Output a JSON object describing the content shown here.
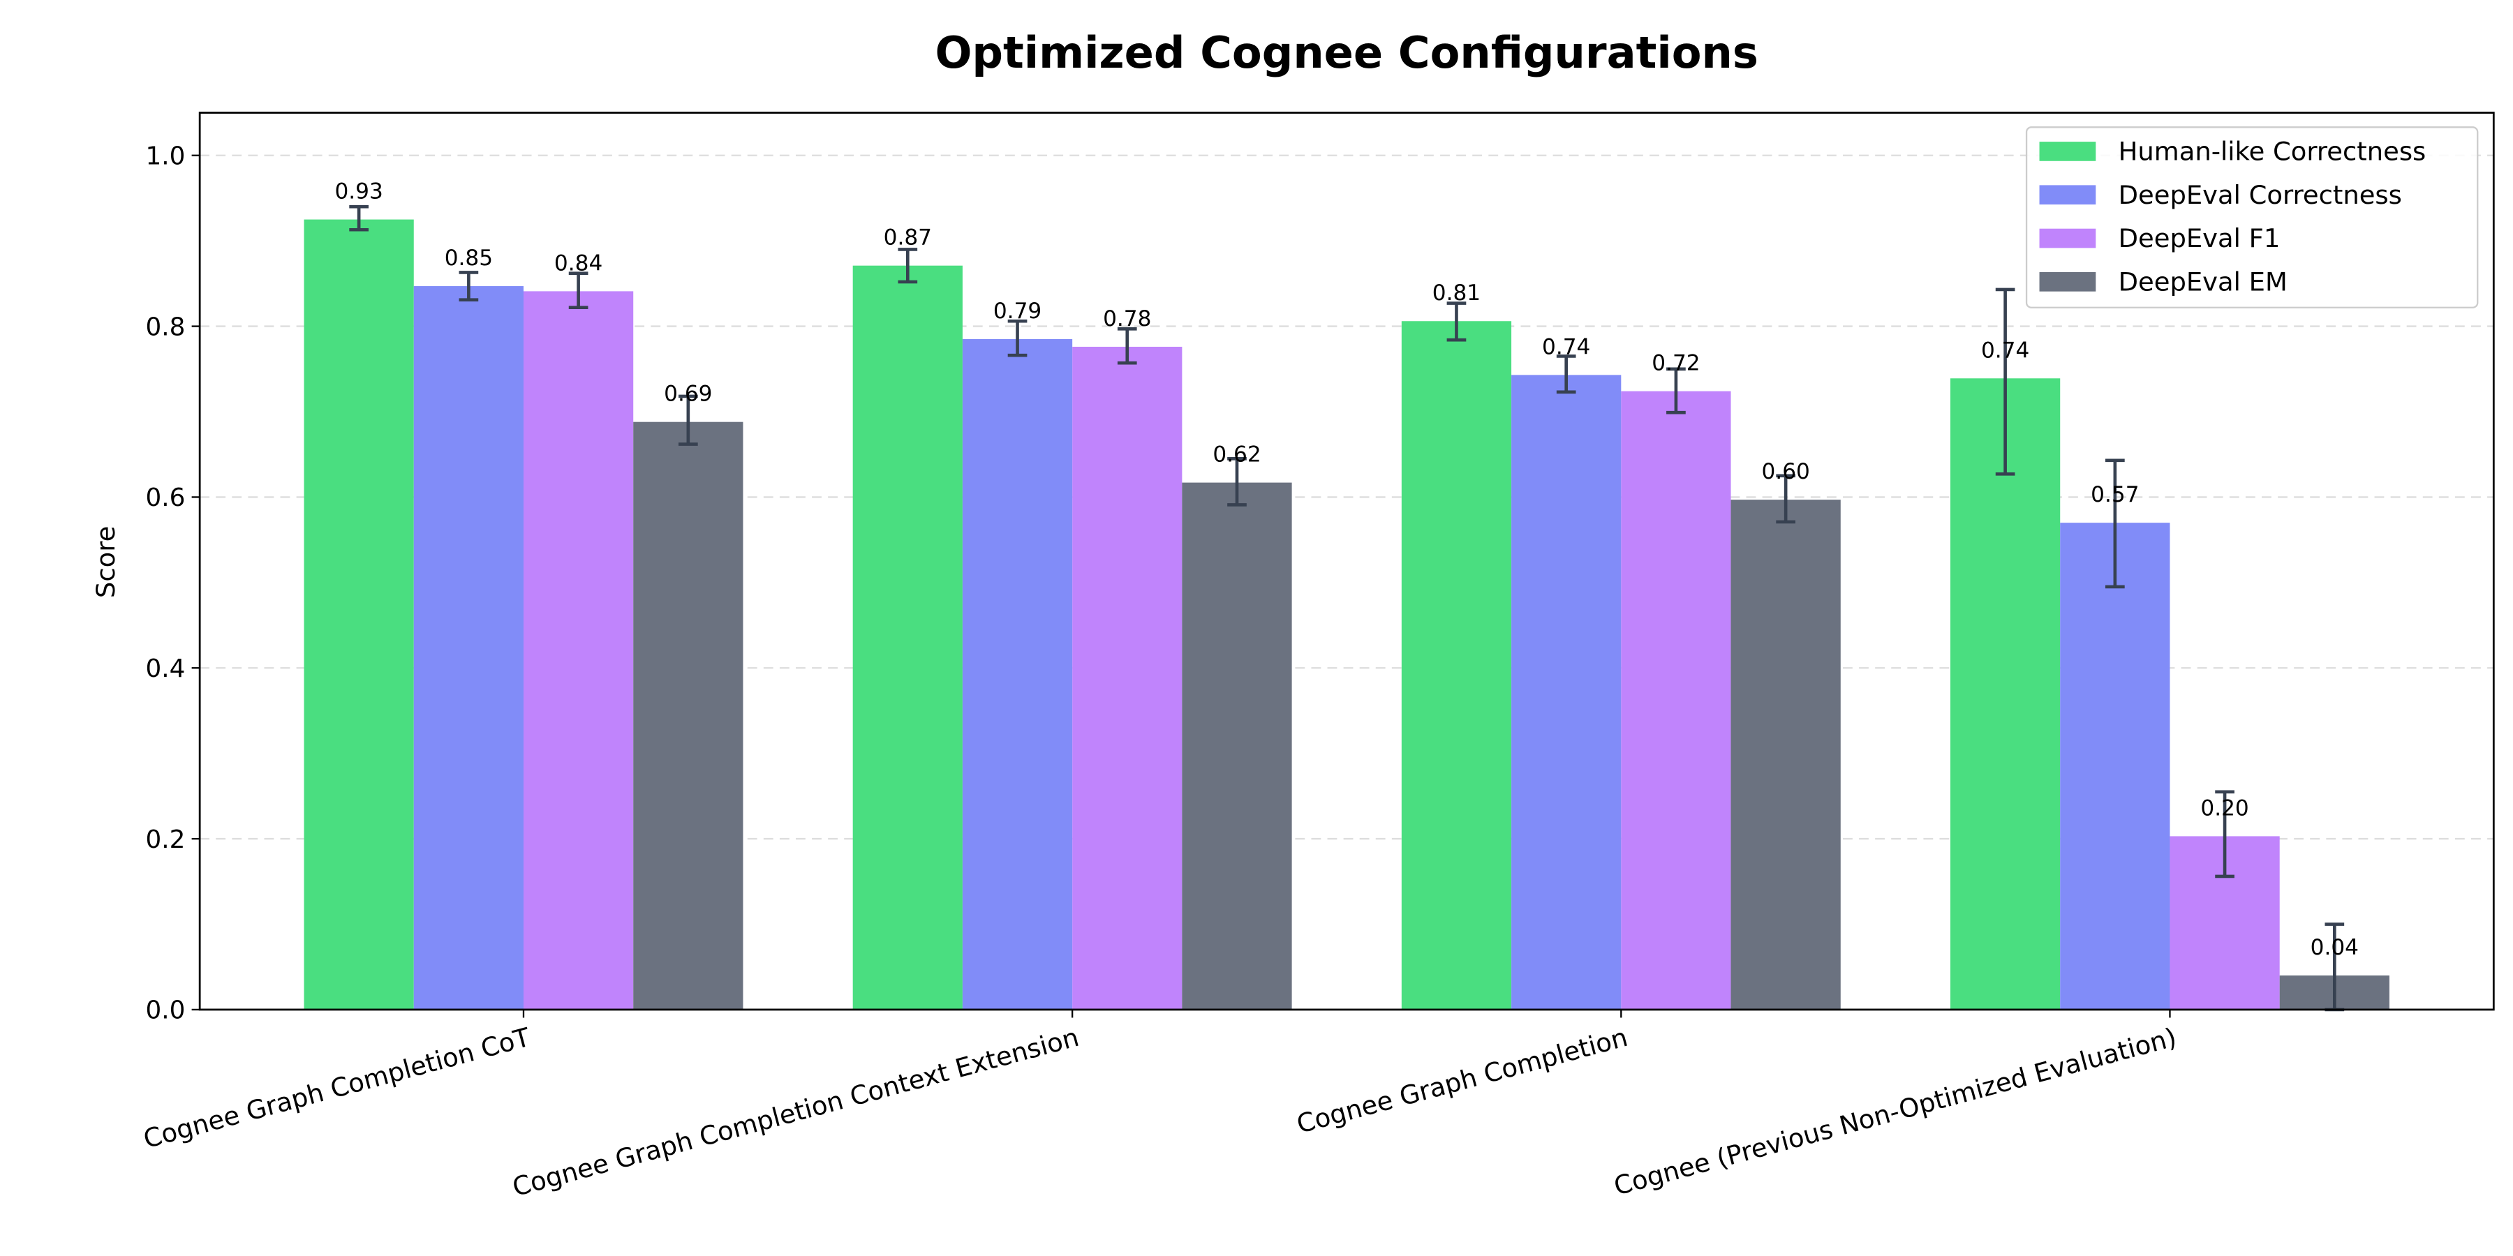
{
  "chart_data": {
    "type": "bar",
    "title": "Optimized Cognee Configurations",
    "xlabel": "",
    "ylabel": "Score",
    "ylim": [
      0,
      1.05
    ],
    "yticks": [
      "0.0",
      "0.2",
      "0.4",
      "0.6",
      "0.8",
      "1.0"
    ],
    "grid": "y dashed",
    "legend_position": "top-right",
    "categories": [
      "Cognee Graph Completion CoT",
      "Cognee Graph Completion Context Extension",
      "Cognee Graph Completion",
      "Cognee (Previous Non-Optimized Evaluation)"
    ],
    "series": [
      {
        "name": "Human-like Correctness",
        "color": "#4ade80",
        "values": [
          0.925,
          0.871,
          0.806,
          0.739
        ],
        "labels": [
          "0.93",
          "0.87",
          "0.81",
          "0.74"
        ],
        "error_low": [
          0.913,
          0.852,
          0.784,
          0.627
        ],
        "error_high": [
          0.94,
          0.89,
          0.827,
          0.843
        ]
      },
      {
        "name": "DeepEval Correctness",
        "color": "#818cf8",
        "values": [
          0.847,
          0.785,
          0.743,
          0.57
        ],
        "labels": [
          "0.85",
          "0.79",
          "0.74",
          "0.57"
        ],
        "error_low": [
          0.831,
          0.766,
          0.723,
          0.495
        ],
        "error_high": [
          0.863,
          0.806,
          0.765,
          0.643
        ]
      },
      {
        "name": "DeepEval F1",
        "color": "#c084fc",
        "values": [
          0.841,
          0.776,
          0.724,
          0.203
        ],
        "labels": [
          "0.84",
          "0.78",
          "0.72",
          "0.20"
        ],
        "error_low": [
          0.822,
          0.757,
          0.699,
          0.156
        ],
        "error_high": [
          0.862,
          0.797,
          0.75,
          0.255
        ]
      },
      {
        "name": "DeepEval EM",
        "color": "#6b7280",
        "values": [
          0.688,
          0.617,
          0.597,
          0.04
        ],
        "labels": [
          "0.69",
          "0.62",
          "0.60",
          "0.04"
        ],
        "error_low": [
          0.662,
          0.591,
          0.571,
          0.0
        ],
        "error_high": [
          0.718,
          0.645,
          0.625,
          0.1
        ]
      }
    ],
    "error_bar_color": "#374151"
  }
}
